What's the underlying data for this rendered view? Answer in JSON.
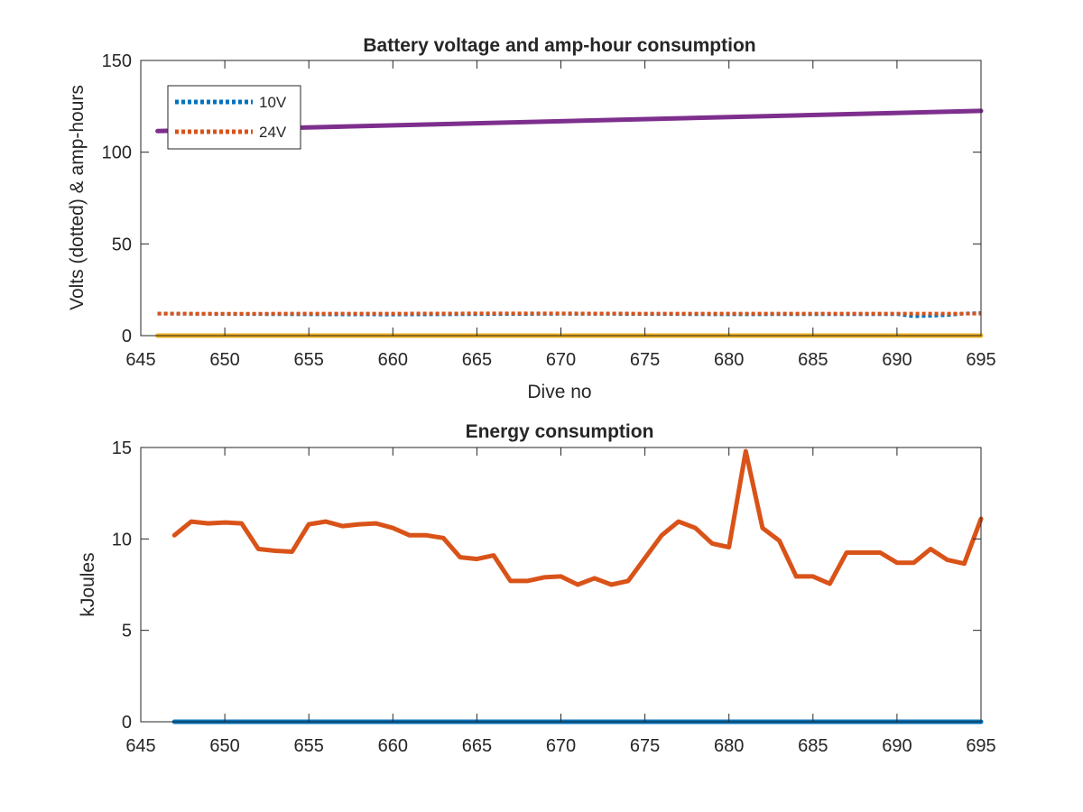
{
  "chart_data": [
    {
      "type": "line",
      "title": "Battery voltage and amp-hour consumption",
      "xlabel": "Dive no",
      "ylabel": "Volts (dotted) & amp-hours",
      "xlim": [
        645,
        695
      ],
      "ylim": [
        0,
        150
      ],
      "xticks": [
        645,
        650,
        655,
        660,
        665,
        670,
        675,
        680,
        685,
        690,
        695
      ],
      "yticks": [
        0,
        50,
        100,
        150
      ],
      "grid": false,
      "legend_position": "top-left",
      "series": [
        {
          "name": "10V",
          "style": "dotted",
          "color": "#0072BD",
          "x": [
            646,
            650,
            655,
            660,
            665,
            670,
            675,
            680,
            685,
            690,
            691,
            692,
            693,
            694,
            695
          ],
          "y": [
            12,
            11.8,
            11.6,
            11.5,
            11.7,
            11.9,
            11.8,
            11.6,
            11.7,
            11.7,
            10.5,
            10.8,
            11.2,
            12,
            12.3
          ]
        },
        {
          "name": "24V",
          "style": "dotted",
          "color": "#D95319",
          "x": [
            646,
            650,
            655,
            660,
            665,
            670,
            675,
            680,
            685,
            690,
            695
          ],
          "y": [
            12,
            11.9,
            12,
            12,
            12.1,
            12.1,
            12,
            12,
            12,
            12,
            12
          ]
        },
        {
          "style": "solid",
          "color": "#EDB120",
          "x": [
            646,
            695
          ],
          "y": [
            0,
            0
          ]
        },
        {
          "style": "solid",
          "color": "#7E2F8E",
          "x": [
            646,
            695
          ],
          "y": [
            111.5,
            122.5
          ]
        }
      ]
    },
    {
      "type": "line",
      "title": "Energy consumption",
      "xlabel": "",
      "ylabel": "kJoules",
      "xlim": [
        645,
        695
      ],
      "ylim": [
        0,
        15
      ],
      "xticks": [
        645,
        650,
        655,
        660,
        665,
        670,
        675,
        680,
        685,
        690,
        695
      ],
      "yticks": [
        0,
        5,
        10,
        15
      ],
      "grid": false,
      "series": [
        {
          "color": "#0072BD",
          "x": [
            647,
            695
          ],
          "y": [
            0,
            0
          ]
        },
        {
          "color": "#D95319",
          "x": [
            647,
            648,
            649,
            650,
            651,
            652,
            653,
            654,
            655,
            656,
            657,
            658,
            659,
            660,
            661,
            662,
            663,
            664,
            665,
            666,
            667,
            668,
            669,
            670,
            671,
            672,
            673,
            674,
            675,
            676,
            677,
            678,
            679,
            680,
            681,
            682,
            683,
            684,
            685,
            686,
            687,
            688,
            689,
            690,
            691,
            692,
            693,
            694,
            695
          ],
          "y": [
            10.2,
            10.95,
            10.85,
            10.9,
            10.85,
            9.45,
            9.35,
            9.3,
            10.8,
            10.95,
            10.7,
            10.8,
            10.85,
            10.6,
            10.2,
            10.2,
            10.05,
            9.0,
            8.9,
            9.1,
            7.7,
            7.7,
            7.9,
            7.95,
            7.5,
            7.85,
            7.5,
            7.7,
            8.95,
            10.2,
            10.95,
            10.6,
            9.75,
            9.55,
            14.8,
            10.6,
            9.9,
            7.95,
            7.95,
            7.55,
            9.25,
            9.25,
            9.25,
            8.7,
            8.7,
            9.45,
            8.85,
            8.65,
            11.1
          ]
        }
      ]
    }
  ]
}
